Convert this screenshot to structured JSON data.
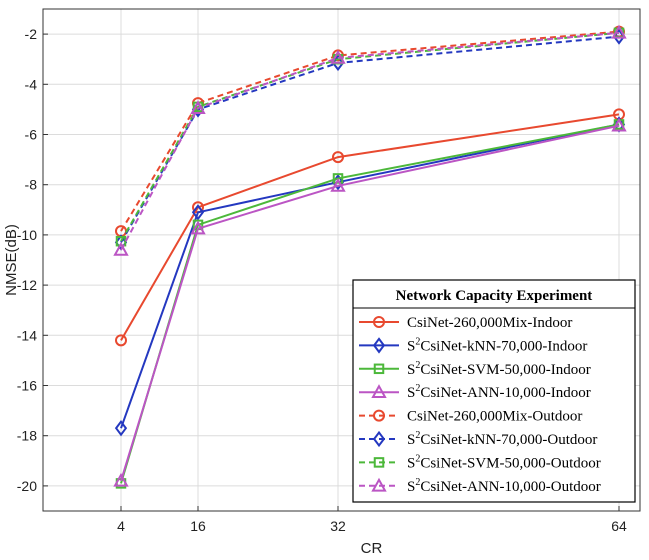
{
  "chart_data": {
    "type": "line",
    "title": "",
    "xlabel": "CR",
    "ylabel": "NMSE(dB)",
    "x": [
      4,
      16,
      32,
      64
    ],
    "xticks": [
      "4",
      "16",
      "32",
      "64"
    ],
    "ylim": [
      -21,
      -1
    ],
    "yticks": [
      "-2",
      "-4",
      "-6",
      "-8",
      "-10",
      "-12",
      "-14",
      "-16",
      "-18",
      "-20"
    ],
    "grid": true,
    "legend_title": "Network Capacity Experiment",
    "legend_position": "bottom-right",
    "series": [
      {
        "name": "CsiNet-260,000Mix-Indoor",
        "sup": "",
        "label_rest": "CsiNet-260,000Mix-Indoor",
        "values": [
          -14.2,
          -8.9,
          -6.9,
          -5.2
        ],
        "color": "#e8492f",
        "marker": "circle",
        "dash": "solid"
      },
      {
        "name": "S2CsiNet-kNN-70,000-Indoor",
        "sup": "2",
        "label_rest": "CsiNet-kNN-70,000-Indoor",
        "values": [
          -17.7,
          -9.1,
          -7.9,
          -5.6
        ],
        "color": "#2438c0",
        "marker": "diamond",
        "dash": "solid"
      },
      {
        "name": "S2CsiNet-SVM-50,000-Indoor",
        "sup": "2",
        "label_rest": "CsiNet-SVM-50,000-Indoor",
        "values": [
          -19.9,
          -9.6,
          -7.75,
          -5.6
        ],
        "color": "#4cb83a",
        "marker": "square",
        "dash": "solid"
      },
      {
        "name": "S2CsiNet-ANN-10,000-Indoor",
        "sup": "2",
        "label_rest": "CsiNet-ANN-10,000-Indoor",
        "values": [
          -19.8,
          -9.75,
          -8.05,
          -5.65
        ],
        "color": "#bb55c4",
        "marker": "triangle",
        "dash": "solid"
      },
      {
        "name": "CsiNet-260,000Mix-Outdoor",
        "sup": "",
        "label_rest": "CsiNet-260,000Mix-Outdoor",
        "values": [
          -9.85,
          -4.75,
          -2.85,
          -1.9
        ],
        "color": "#e8492f",
        "marker": "circle",
        "dash": "dashed"
      },
      {
        "name": "S2CsiNet-kNN-70,000-Outdoor",
        "sup": "2",
        "label_rest": "CsiNet-kNN-70,000-Outdoor",
        "values": [
          -10.3,
          -5.0,
          -3.15,
          -2.1
        ],
        "color": "#2438c0",
        "marker": "diamond",
        "dash": "dashed"
      },
      {
        "name": "S2CsiNet-SVM-50,000-Outdoor",
        "sup": "2",
        "label_rest": "CsiNet-SVM-50,000-Outdoor",
        "values": [
          -10.25,
          -4.9,
          -3.0,
          -1.95
        ],
        "color": "#4cb83a",
        "marker": "square",
        "dash": "dashed"
      },
      {
        "name": "S2CsiNet-ANN-10,000-Outdoor",
        "sup": "2",
        "label_rest": "CsiNet-ANN-10,000-Outdoor",
        "values": [
          -10.6,
          -4.95,
          -2.95,
          -1.95
        ],
        "color": "#bb55c4",
        "marker": "triangle",
        "dash": "dashed"
      }
    ]
  }
}
